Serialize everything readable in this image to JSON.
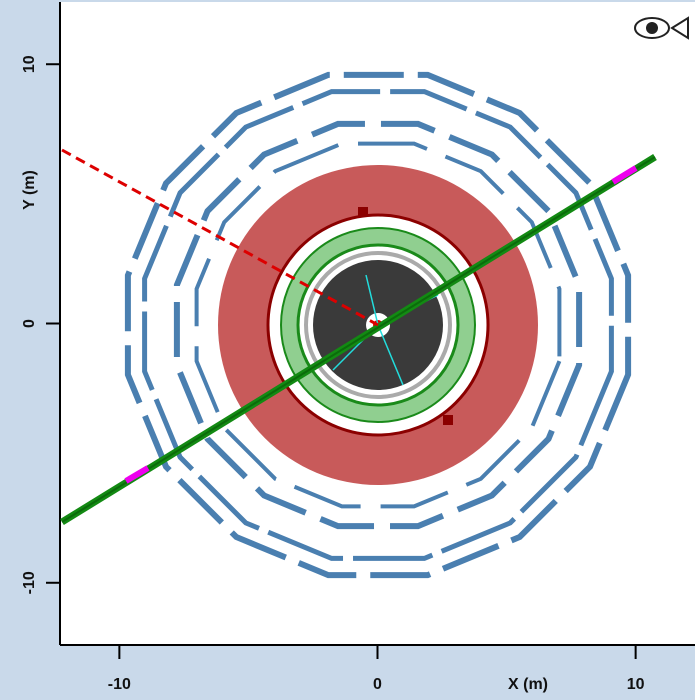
{
  "display": {
    "x_axis": {
      "label": "X (m)",
      "lim": [
        -12.3,
        12.3
      ],
      "ticks": [
        -10,
        0,
        10
      ]
    },
    "y_axis": {
      "label": "Y (m)",
      "lim": [
        -12.4,
        12.4
      ],
      "ticks": [
        10,
        0,
        -10
      ]
    }
  }
}
